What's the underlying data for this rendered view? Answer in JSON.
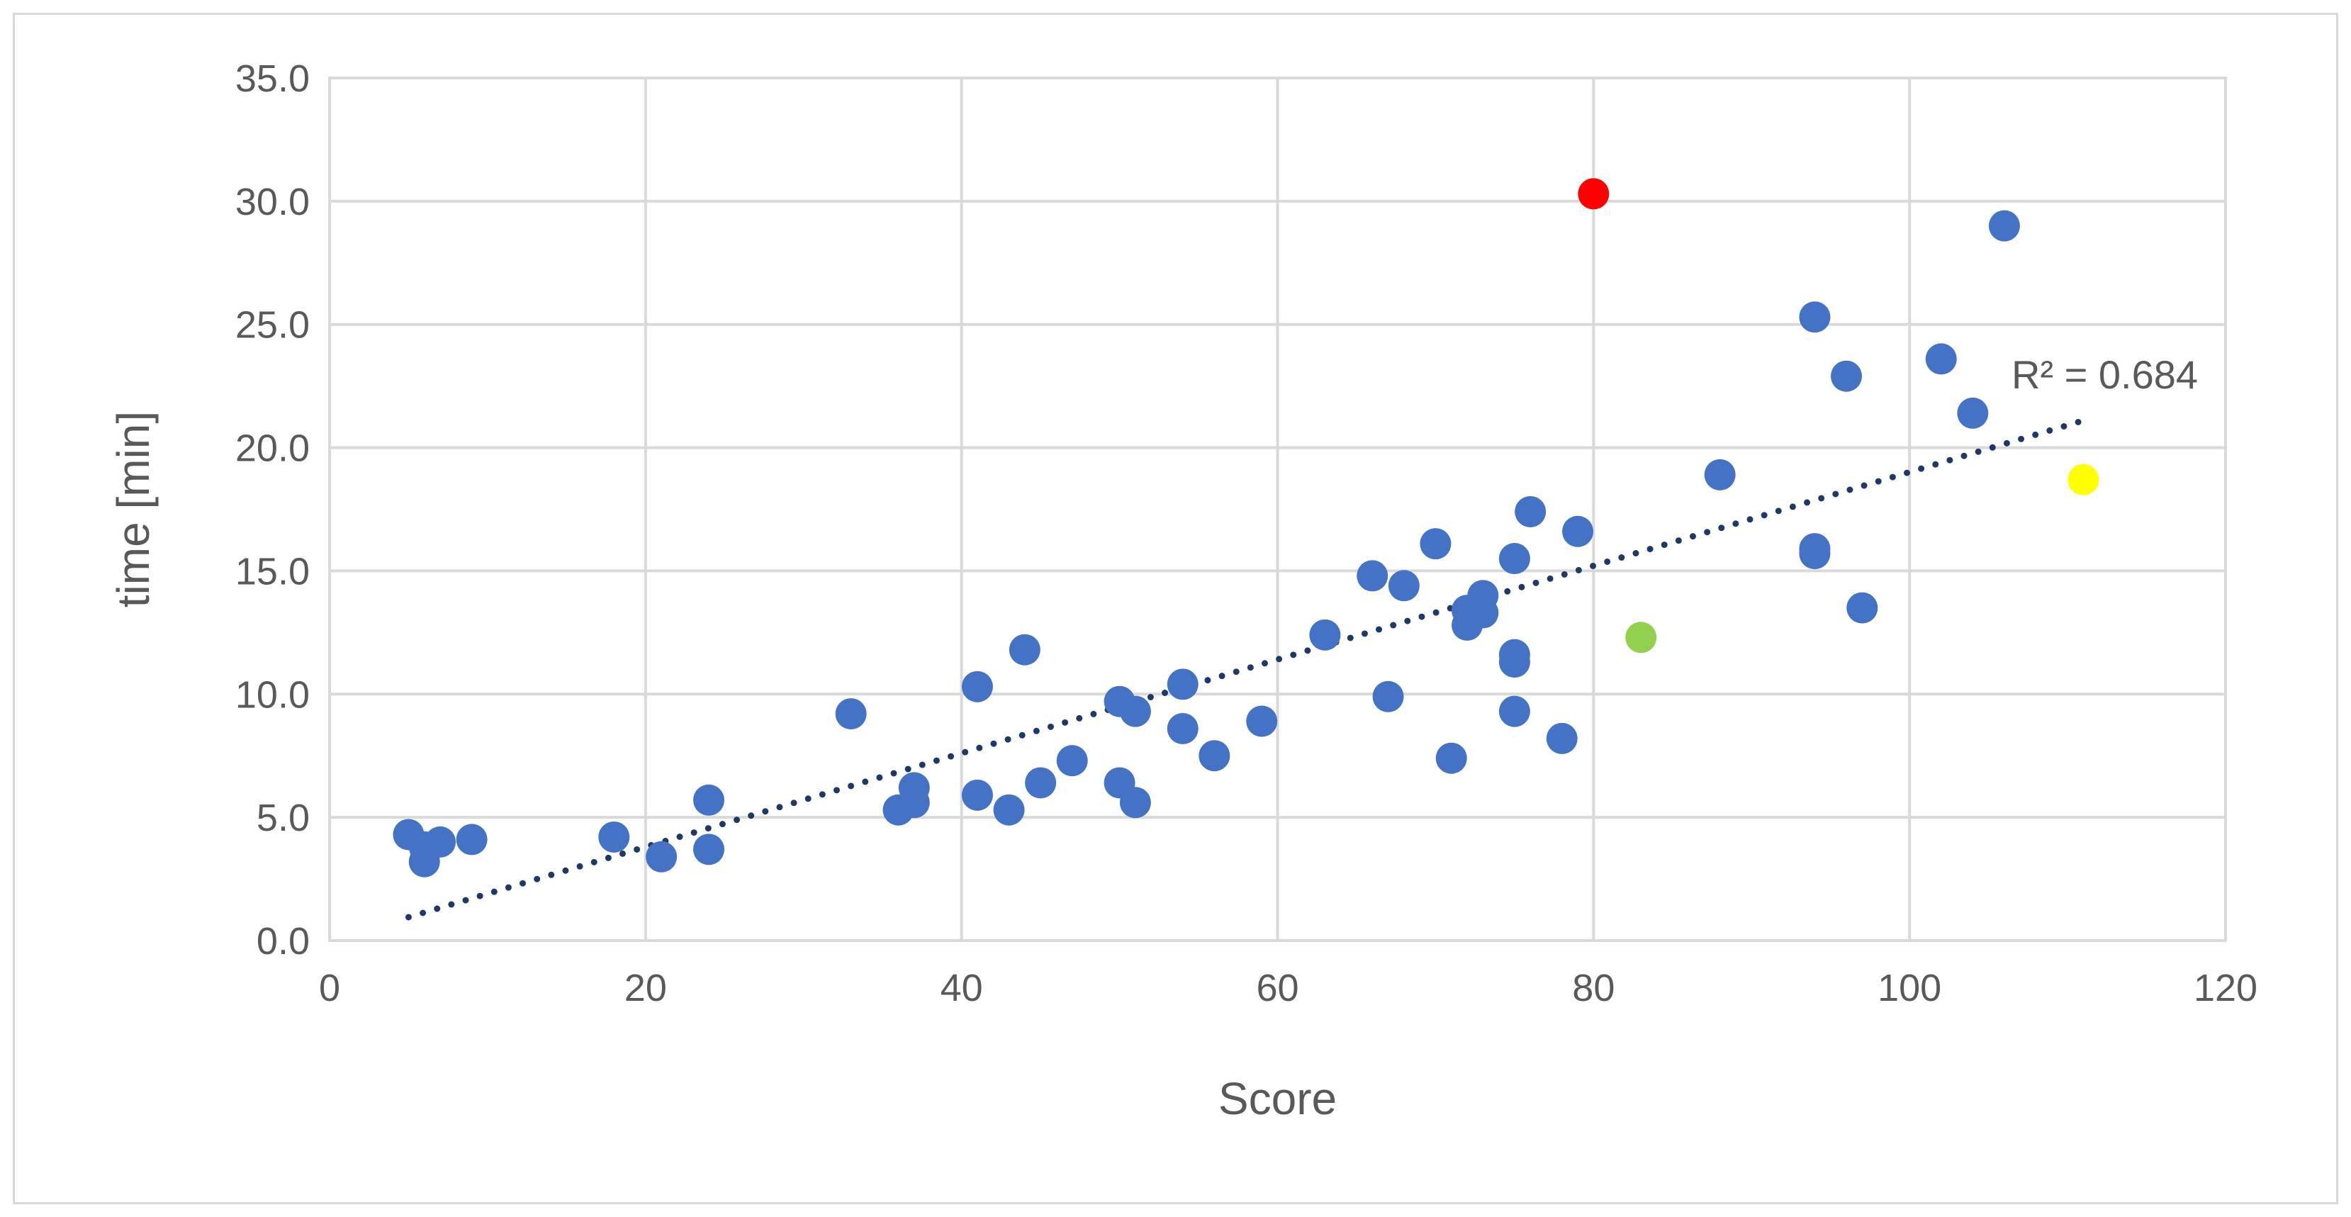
{
  "chart_data": {
    "type": "scatter",
    "xlabel": "Score",
    "ylabel": "time [min]",
    "xlim": [
      0,
      120
    ],
    "ylim": [
      0,
      35
    ],
    "x_ticks": [
      "0",
      "20",
      "40",
      "60",
      "80",
      "100",
      "120"
    ],
    "y_ticks": [
      "0.0",
      "5.0",
      "10.0",
      "15.0",
      "20.0",
      "25.0",
      "30.0",
      "35.0"
    ],
    "grid": true,
    "legend": "none",
    "colors": {
      "points": "#4472c4",
      "trendline": "#1f3864",
      "highlight_red": "#ff0000",
      "highlight_green": "#92d050",
      "highlight_yellow": "#ffff00"
    },
    "points": [
      {
        "x": 5,
        "y": 4.3
      },
      {
        "x": 6,
        "y": 3.2
      },
      {
        "x": 6,
        "y": 3.8
      },
      {
        "x": 7,
        "y": 4.0
      },
      {
        "x": 9,
        "y": 4.1
      },
      {
        "x": 18,
        "y": 4.2
      },
      {
        "x": 21,
        "y": 3.4
      },
      {
        "x": 24,
        "y": 5.7
      },
      {
        "x": 24,
        "y": 3.7
      },
      {
        "x": 33,
        "y": 9.2
      },
      {
        "x": 36,
        "y": 5.3
      },
      {
        "x": 37,
        "y": 6.2
      },
      {
        "x": 37,
        "y": 5.6
      },
      {
        "x": 41,
        "y": 10.3
      },
      {
        "x": 41,
        "y": 5.9
      },
      {
        "x": 43,
        "y": 5.3
      },
      {
        "x": 44,
        "y": 11.8
      },
      {
        "x": 45,
        "y": 6.4
      },
      {
        "x": 47,
        "y": 7.3
      },
      {
        "x": 50,
        "y": 9.7
      },
      {
        "x": 50,
        "y": 6.4
      },
      {
        "x": 51,
        "y": 9.3
      },
      {
        "x": 51,
        "y": 5.6
      },
      {
        "x": 54,
        "y": 10.4
      },
      {
        "x": 54,
        "y": 8.6
      },
      {
        "x": 56,
        "y": 7.5
      },
      {
        "x": 59,
        "y": 8.9
      },
      {
        "x": 63,
        "y": 12.4
      },
      {
        "x": 66,
        "y": 14.8
      },
      {
        "x": 67,
        "y": 9.9
      },
      {
        "x": 68,
        "y": 14.4
      },
      {
        "x": 70,
        "y": 16.1
      },
      {
        "x": 71,
        "y": 7.4
      },
      {
        "x": 72,
        "y": 13.4
      },
      {
        "x": 72,
        "y": 12.8
      },
      {
        "x": 73,
        "y": 14.0
      },
      {
        "x": 73,
        "y": 13.3
      },
      {
        "x": 75,
        "y": 15.5
      },
      {
        "x": 75,
        "y": 11.6
      },
      {
        "x": 75,
        "y": 11.3
      },
      {
        "x": 75,
        "y": 9.3
      },
      {
        "x": 76,
        "y": 17.4
      },
      {
        "x": 78,
        "y": 8.2
      },
      {
        "x": 79,
        "y": 16.6
      },
      {
        "x": 88,
        "y": 18.9
      },
      {
        "x": 94,
        "y": 25.3
      },
      {
        "x": 94,
        "y": 15.9
      },
      {
        "x": 94,
        "y": 15.7
      },
      {
        "x": 96,
        "y": 22.9
      },
      {
        "x": 97,
        "y": 13.5
      },
      {
        "x": 102,
        "y": 23.6
      },
      {
        "x": 104,
        "y": 21.4
      },
      {
        "x": 106,
        "y": 29.0
      }
    ],
    "highlighted_points": [
      {
        "x": 80,
        "y": 30.3,
        "color": "#ff0000"
      },
      {
        "x": 83,
        "y": 12.3,
        "color": "#92d050"
      },
      {
        "x": 111,
        "y": 18.7,
        "color": "#ffff00"
      }
    ],
    "trendline": {
      "type": "linear",
      "style": "dotted",
      "x_start": 5,
      "y_start": 0.95,
      "x_end": 111,
      "y_end": 21.1,
      "r_squared_label": "R² = 0.684"
    }
  }
}
